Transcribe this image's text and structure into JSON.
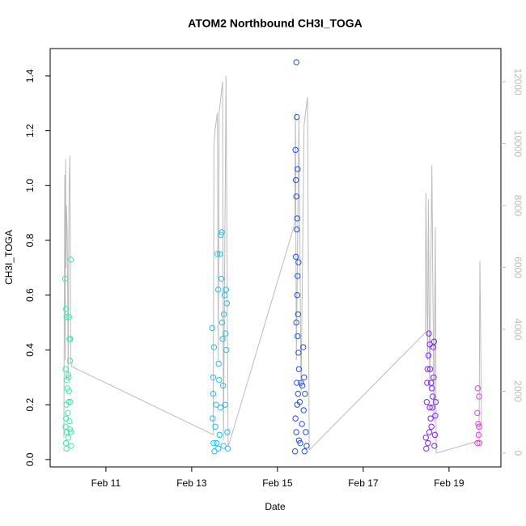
{
  "chart_data": {
    "type": "scatter",
    "title": "ATOM2 Northbound CH3I_TOGA",
    "x_label": "Date",
    "y_label": "CH3I_TOGA",
    "xlim": [
      9.7,
      20.21
    ],
    "ylim": [
      -0.027,
      1.5
    ],
    "y2lim": [
      -444,
      13072
    ],
    "xticks": [
      {
        "value": 11,
        "label": "Feb 11"
      },
      {
        "value": 13,
        "label": "Feb 13"
      },
      {
        "value": 15,
        "label": "Feb 15"
      },
      {
        "value": 17,
        "label": "Feb 17"
      },
      {
        "value": 19,
        "label": "Feb 19"
      }
    ],
    "yticks": [
      {
        "value": 0,
        "label": "0.0"
      },
      0.2,
      0.4,
      0.6,
      0.8,
      {
        "value": 1,
        "label": "1.0"
      },
      1.2,
      1.4
    ],
    "y2ticks": [
      0,
      2000,
      4000,
      6000,
      8000,
      10000,
      12000
    ],
    "y2_color": "#bbbbbb",
    "series": [
      {
        "color": "#3ee8b0",
        "x": [
          10.05,
          10.07,
          10.08,
          10.06,
          10.09,
          10.1,
          10.08,
          10.07,
          10.06,
          10.09,
          10.07,
          10.08,
          10.12,
          10.13,
          10.14,
          10.15,
          10.16,
          10.14,
          10.13,
          10.15,
          10.16,
          10.17,
          10.18,
          10.17,
          10.18,
          10.19,
          10.11,
          10.12
        ],
        "values": [
          0.66,
          0.55,
          0.52,
          0.33,
          0.29,
          0.26,
          0.2,
          0.15,
          0.12,
          0.1,
          0.06,
          0.04,
          0.31,
          0.3,
          0.52,
          0.44,
          0.36,
          0.25,
          0.21,
          0.14,
          0.11,
          0.44,
          0.73,
          0.21,
          0.1,
          0.05,
          0.17,
          0.08
        ]
      },
      {
        "color": "#1ec0f0",
        "x": [
          13.48,
          13.5,
          13.52,
          13.5,
          13.49,
          13.51,
          13.53,
          13.55,
          13.57,
          13.6,
          13.62,
          13.63,
          13.64,
          13.66,
          13.68,
          13.7,
          13.69,
          13.71,
          13.67,
          13.65,
          13.62,
          13.72,
          13.73,
          13.75,
          13.77,
          13.8,
          13.82,
          13.79,
          13.81,
          13.78,
          13.83,
          13.84,
          13.58,
          13.74
        ],
        "values": [
          0.48,
          0.3,
          0.41,
          0.24,
          0.15,
          0.06,
          0.03,
          0.12,
          0.2,
          0.75,
          0.62,
          0.35,
          0.29,
          0.75,
          0.82,
          0.83,
          0.66,
          0.5,
          0.19,
          0.09,
          0.04,
          0.44,
          0.27,
          0.53,
          0.6,
          0.62,
          0.57,
          0.46,
          0.4,
          0.2,
          0.1,
          0.04,
          0.06,
          0.05
        ]
      },
      {
        "color": "#2050e8",
        "x": [
          15.42,
          15.44,
          15.45,
          15.43,
          15.44,
          15.46,
          15.45,
          15.43,
          15.47,
          15.46,
          15.48,
          15.44,
          15.47,
          15.49,
          15.5,
          15.45,
          15.48,
          15.46,
          15.42,
          15.44,
          15.5,
          15.52,
          15.55,
          15.58,
          15.6,
          15.62,
          15.64,
          15.61,
          15.57,
          15.53,
          15.41,
          15.66,
          15.68,
          15.63,
          15.47,
          15.49
        ],
        "values": [
          1.13,
          1.45,
          1.25,
          1.02,
          0.96,
          0.88,
          0.84,
          0.74,
          0.67,
          0.6,
          0.53,
          0.5,
          0.45,
          0.39,
          0.33,
          0.28,
          0.24,
          0.2,
          0.15,
          0.1,
          0.07,
          0.21,
          0.28,
          0.27,
          0.41,
          0.3,
          0.24,
          0.18,
          0.13,
          0.06,
          0.03,
          0.1,
          0.05,
          0.03,
          1.06,
          0.72
        ]
      },
      {
        "color": "#8020f0",
        "x": [
          18.46,
          18.48,
          18.5,
          18.52,
          18.53,
          18.55,
          18.56,
          18.58,
          18.6,
          18.62,
          18.63,
          18.65,
          18.64,
          18.61,
          18.57,
          18.54,
          18.51,
          18.47,
          18.59,
          18.66,
          18.68,
          18.69,
          18.67,
          18.49,
          18.55
        ],
        "values": [
          0.08,
          0.21,
          0.33,
          0.38,
          0.46,
          0.42,
          0.33,
          0.28,
          0.26,
          0.23,
          0.41,
          0.43,
          0.3,
          0.19,
          0.15,
          0.1,
          0.06,
          0.04,
          0.12,
          0.05,
          0.16,
          0.21,
          0.09,
          0.28,
          0.19
        ]
      },
      {
        "color": "#e040e0",
        "x": [
          19.67,
          19.7,
          19.66,
          19.68,
          19.7,
          19.69,
          19.66,
          19.71
        ],
        "values": [
          0.26,
          0.23,
          0.17,
          0.13,
          0.12,
          0.09,
          0.06,
          0.06
        ]
      },
      {
        "type": "line",
        "axis": "y2",
        "color": "#bbbbbb",
        "x": [
          10.02,
          10.04,
          10.05,
          10.06,
          10.07,
          10.08,
          10.1,
          10.12,
          10.14,
          10.16,
          10.18,
          10.2,
          13.5,
          13.52,
          13.55,
          13.6,
          13.62,
          13.64,
          13.72,
          13.74,
          13.8,
          13.85,
          15.4,
          15.42,
          15.44,
          15.5,
          15.55,
          15.62,
          15.7,
          15.74,
          18.45,
          18.46,
          18.5,
          18.52,
          18.55,
          18.6,
          18.65,
          18.68,
          18.7,
          19.7,
          19.72,
          19.76
        ],
        "values": [
          500,
          9000,
          3000,
          9500,
          6000,
          8000,
          7000,
          2500,
          8500,
          9600,
          3000,
          2800,
          600,
          10000,
          10500,
          11000,
          3000,
          11000,
          12000,
          400,
          12200,
          200,
          7400,
          11000,
          3000,
          10800,
          2000,
          10600,
          11500,
          100,
          3900,
          8400,
          3000,
          8200,
          2000,
          9300,
          1000,
          7300,
          0,
          400,
          6200,
          700
        ]
      }
    ]
  }
}
